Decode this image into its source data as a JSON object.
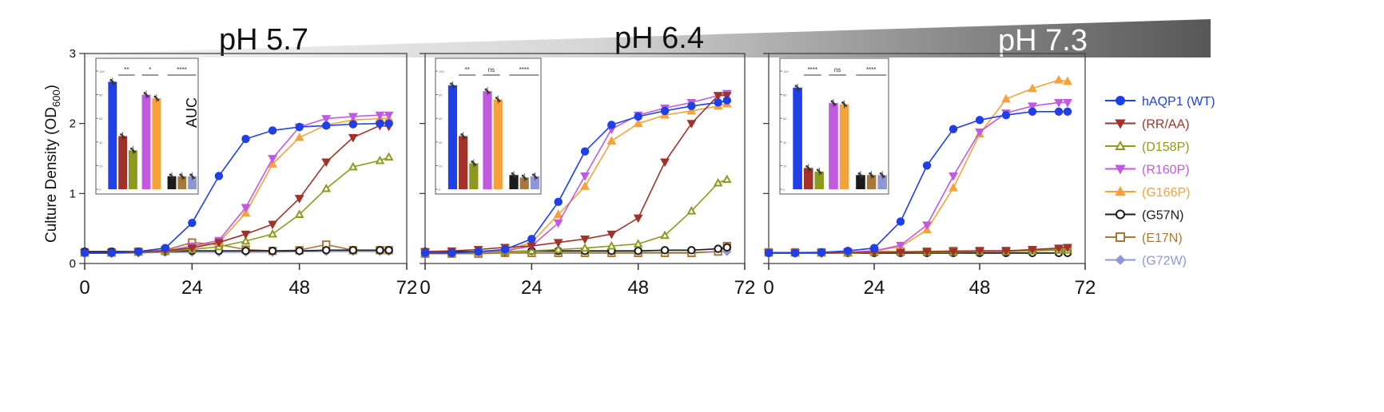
{
  "figure": {
    "ylabel": "Culture Density (OD",
    "ylabel_sub": "600",
    "ylabel_close": ")",
    "inset_label": "AUC"
  },
  "colors": {
    "hAQP1 (WT)": "#1f3fe8",
    "(RR/AA)": "#a0322a",
    "(D158P)": "#8c9a1e",
    "(R160P)": "#c05be0",
    "(G166P)": "#f6a23a",
    "(G57N)": "#1a1a1a",
    "(E17N)": "#a8783a",
    "(G72W)": "#8f96d6"
  },
  "legend": [
    {
      "name": "hAQP1 (WT)",
      "marker": "circle"
    },
    {
      "name": "(RR/AA)",
      "marker": "tri-down"
    },
    {
      "name": "(D158P)",
      "marker": "tri-up-open"
    },
    {
      "name": "(R160P)",
      "marker": "tri-down"
    },
    {
      "name": "(G166P)",
      "marker": "tri-up"
    },
    {
      "name": "(G57N)",
      "marker": "circle-open"
    },
    {
      "name": "(E17N)",
      "marker": "square-open"
    },
    {
      "name": "(G72W)",
      "marker": "diamond"
    }
  ],
  "chart_data": [
    {
      "type": "line",
      "title": "pH 5.7",
      "xlabel": "",
      "ylabel": "Culture Density (OD600)",
      "xlim": [
        0,
        72
      ],
      "ylim": [
        0,
        3
      ],
      "xticks": [
        "0",
        "24",
        "48",
        "72"
      ],
      "yticks": [
        "0",
        "1",
        "2",
        "3"
      ],
      "x": [
        0,
        6,
        12,
        18,
        24,
        30,
        36,
        42,
        48,
        54,
        60,
        66,
        68
      ],
      "series": [
        {
          "name": "hAQP1 (WT)",
          "values": [
            0.15,
            0.15,
            0.17,
            0.22,
            0.58,
            1.25,
            1.78,
            1.9,
            1.95,
            1.97,
            1.99,
            2.0,
            2.0
          ]
        },
        {
          "name": "(RR/AA)",
          "values": [
            0.15,
            0.15,
            0.16,
            0.18,
            0.22,
            0.3,
            0.42,
            0.56,
            0.93,
            1.45,
            1.8,
            1.97,
            1.96
          ]
        },
        {
          "name": "(D158P)",
          "values": [
            0.15,
            0.15,
            0.16,
            0.17,
            0.2,
            0.24,
            0.32,
            0.42,
            0.7,
            1.07,
            1.38,
            1.47,
            1.52
          ]
        },
        {
          "name": "(R160P)",
          "values": [
            0.15,
            0.15,
            0.16,
            0.18,
            0.25,
            0.33,
            0.8,
            1.5,
            1.95,
            2.07,
            2.1,
            2.12,
            2.12
          ]
        },
        {
          "name": "(G166P)",
          "values": [
            0.15,
            0.15,
            0.16,
            0.18,
            0.24,
            0.3,
            0.72,
            1.42,
            1.8,
            1.98,
            2.05,
            2.07,
            2.07
          ]
        },
        {
          "name": "(G57N)",
          "values": [
            0.17,
            0.17,
            0.17,
            0.17,
            0.18,
            0.18,
            0.18,
            0.18,
            0.18,
            0.19,
            0.19,
            0.19,
            0.19
          ]
        },
        {
          "name": "(E17N)",
          "values": [
            0.16,
            0.16,
            0.17,
            0.19,
            0.3,
            0.27,
            0.2,
            0.18,
            0.19,
            0.27,
            0.19,
            0.19,
            0.19
          ]
        },
        {
          "name": "(G72W)",
          "values": [
            0.15,
            0.15,
            0.15,
            0.16,
            0.16,
            0.16,
            0.16,
            0.16,
            0.17,
            0.17,
            0.17,
            0.17,
            0.17
          ]
        }
      ],
      "inset": {
        "ylabel": "AUC",
        "yticks": [
          "0",
          "20",
          "40",
          "60",
          "80",
          "100"
        ],
        "ylim": [
          0,
          100
        ],
        "values": [
          91,
          45,
          33,
          80,
          77,
          11,
          11,
          11
        ],
        "significance": [
          "**",
          "*",
          "****"
        ]
      }
    },
    {
      "type": "line",
      "title": "pH 6.4",
      "xlim": [
        0,
        72
      ],
      "ylim": [
        0,
        3
      ],
      "xticks": [
        "0",
        "24",
        "48",
        "72"
      ],
      "x": [
        0,
        6,
        12,
        18,
        24,
        30,
        36,
        42,
        48,
        54,
        60,
        66,
        68
      ],
      "series": [
        {
          "name": "hAQP1 (WT)",
          "values": [
            0.15,
            0.15,
            0.17,
            0.2,
            0.35,
            0.88,
            1.6,
            1.98,
            2.1,
            2.18,
            2.25,
            2.3,
            2.33
          ]
        },
        {
          "name": "(RR/AA)",
          "values": [
            0.17,
            0.18,
            0.2,
            0.23,
            0.25,
            0.3,
            0.35,
            0.42,
            0.65,
            1.45,
            2.0,
            2.4,
            2.4
          ]
        },
        {
          "name": "(D158P)",
          "values": [
            0.15,
            0.15,
            0.16,
            0.17,
            0.18,
            0.2,
            0.22,
            0.25,
            0.28,
            0.4,
            0.75,
            1.15,
            1.2
          ]
        },
        {
          "name": "(R160P)",
          "values": [
            0.15,
            0.15,
            0.16,
            0.18,
            0.25,
            0.58,
            1.25,
            1.92,
            2.12,
            2.22,
            2.3,
            2.4,
            2.43
          ]
        },
        {
          "name": "(G166P)",
          "values": [
            0.15,
            0.15,
            0.16,
            0.18,
            0.3,
            0.7,
            1.1,
            1.75,
            2.0,
            2.12,
            2.18,
            2.25,
            2.28
          ]
        },
        {
          "name": "(G57N)",
          "values": [
            0.17,
            0.17,
            0.17,
            0.17,
            0.18,
            0.18,
            0.18,
            0.18,
            0.18,
            0.19,
            0.19,
            0.21,
            0.23
          ]
        },
        {
          "name": "(E17N)",
          "values": [
            0.14,
            0.14,
            0.14,
            0.15,
            0.15,
            0.15,
            0.15,
            0.15,
            0.15,
            0.15,
            0.15,
            0.17,
            0.25
          ]
        },
        {
          "name": "(G72W)",
          "values": [
            0.15,
            0.15,
            0.15,
            0.15,
            0.16,
            0.16,
            0.16,
            0.16,
            0.16,
            0.16,
            0.16,
            0.17,
            0.17
          ]
        }
      ],
      "inset": {
        "yticks": [
          "0",
          "20",
          "40",
          "60",
          "80",
          "100"
        ],
        "ylim": [
          0,
          100
        ],
        "values": [
          88,
          45,
          22,
          83,
          76,
          12,
          10,
          11
        ],
        "significance": [
          "**",
          "ns",
          "****"
        ]
      }
    },
    {
      "type": "line",
      "title": "pH 7.3",
      "xlim": [
        0,
        72
      ],
      "ylim": [
        0,
        3
      ],
      "xticks": [
        "0",
        "24",
        "48",
        "72"
      ],
      "x": [
        0,
        6,
        12,
        18,
        24,
        30,
        36,
        42,
        48,
        54,
        60,
        66,
        68
      ],
      "series": [
        {
          "name": "hAQP1 (WT)",
          "values": [
            0.15,
            0.15,
            0.16,
            0.18,
            0.22,
            0.6,
            1.4,
            1.92,
            2.05,
            2.12,
            2.17,
            2.17,
            2.17
          ]
        },
        {
          "name": "(RR/AA)",
          "values": [
            0.15,
            0.15,
            0.15,
            0.16,
            0.16,
            0.16,
            0.17,
            0.17,
            0.18,
            0.18,
            0.2,
            0.22,
            0.23
          ]
        },
        {
          "name": "(D158P)",
          "values": [
            0.15,
            0.15,
            0.15,
            0.15,
            0.16,
            0.16,
            0.16,
            0.16,
            0.17,
            0.17,
            0.18,
            0.19,
            0.19
          ]
        },
        {
          "name": "(R160P)",
          "values": [
            0.15,
            0.15,
            0.15,
            0.16,
            0.18,
            0.26,
            0.55,
            1.25,
            1.88,
            2.15,
            2.25,
            2.3,
            2.3
          ]
        },
        {
          "name": "(G166P)",
          "values": [
            0.15,
            0.15,
            0.15,
            0.16,
            0.18,
            0.24,
            0.48,
            1.08,
            1.85,
            2.35,
            2.5,
            2.62,
            2.6
          ]
        },
        {
          "name": "(G57N)",
          "values": [
            0.15,
            0.15,
            0.15,
            0.15,
            0.15,
            0.15,
            0.15,
            0.15,
            0.15,
            0.15,
            0.15,
            0.15,
            0.15
          ]
        },
        {
          "name": "(E17N)",
          "values": [
            0.16,
            0.16,
            0.16,
            0.16,
            0.17,
            0.17,
            0.17,
            0.18,
            0.18,
            0.18,
            0.19,
            0.2,
            0.2
          ]
        },
        {
          "name": "(G72W)",
          "values": [
            0.15,
            0.15,
            0.15,
            0.15,
            0.15,
            0.15,
            0.15,
            0.15,
            0.15,
            0.15,
            0.15,
            0.15,
            0.15
          ]
        }
      ],
      "inset": {
        "yticks": [
          "0",
          "20",
          "40",
          "60",
          "80",
          "100"
        ],
        "ylim": [
          0,
          100
        ],
        "values": [
          86,
          18,
          15,
          73,
          72,
          12,
          12,
          12
        ],
        "significance": [
          "****",
          "ns",
          "****"
        ]
      }
    }
  ]
}
